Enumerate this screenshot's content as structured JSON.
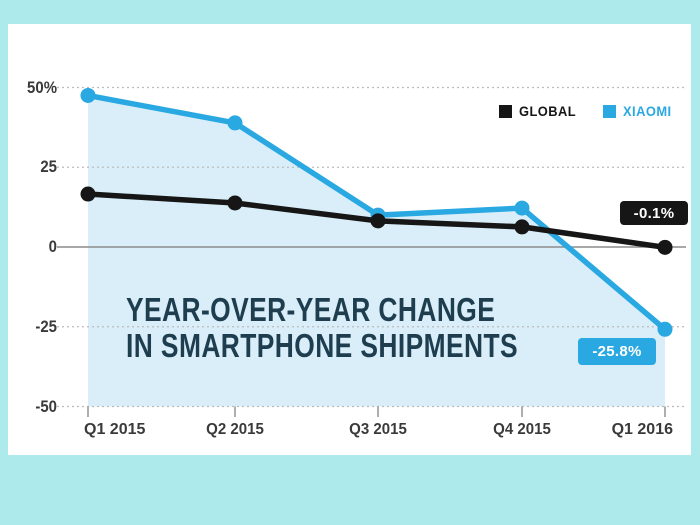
{
  "page": {
    "background_color": "#aceaeb",
    "panel_color": "#ffffff"
  },
  "legend": {
    "items": [
      {
        "label": "GLOBAL",
        "color": "#161616"
      },
      {
        "label": "XIAOMI",
        "color": "#29a8e1"
      }
    ]
  },
  "chart_data": {
    "type": "line",
    "title_line1": "YEAR-OVER-YEAR CHANGE",
    "title_line2": "IN SMARTPHONE SHIPMENTS",
    "title_color": "#1e3e50",
    "categories": [
      "Q1 2015",
      "Q2 2015",
      "Q3 2015",
      "Q4 2015",
      "Q1 2016"
    ],
    "series": [
      {
        "name": "GLOBAL",
        "color": "#161616",
        "values": [
          16.6,
          13.8,
          8.2,
          6.3,
          -0.1
        ]
      },
      {
        "name": "XIAOMI",
        "color": "#29a8e1",
        "values": [
          47.5,
          38.9,
          10,
          12.2,
          -25.8
        ],
        "area": true,
        "area_color": "#d9eef9"
      }
    ],
    "y_ticks": [
      {
        "label": "50%",
        "value": 50
      },
      {
        "label": "25",
        "value": 25
      },
      {
        "label": "0",
        "value": 0
      },
      {
        "label": "-25",
        "value": -25
      },
      {
        "label": "-50",
        "value": -50
      }
    ],
    "ylim": [
      -50,
      50
    ],
    "grid": "dotted horizontal, solid zero line",
    "grid_color": "#bcbcbc",
    "zero_line_color": "#8c8c8c",
    "tick_color": "#9a9a9a",
    "legend_position": "top-right",
    "annotations": [
      {
        "text": "-0.1%",
        "bg": "#161616",
        "series": "GLOBAL",
        "point": "Q1 2016"
      },
      {
        "text": "-25.8%",
        "bg": "#29a8e1",
        "series": "XIAOMI",
        "point": "Q1 2016"
      }
    ]
  }
}
